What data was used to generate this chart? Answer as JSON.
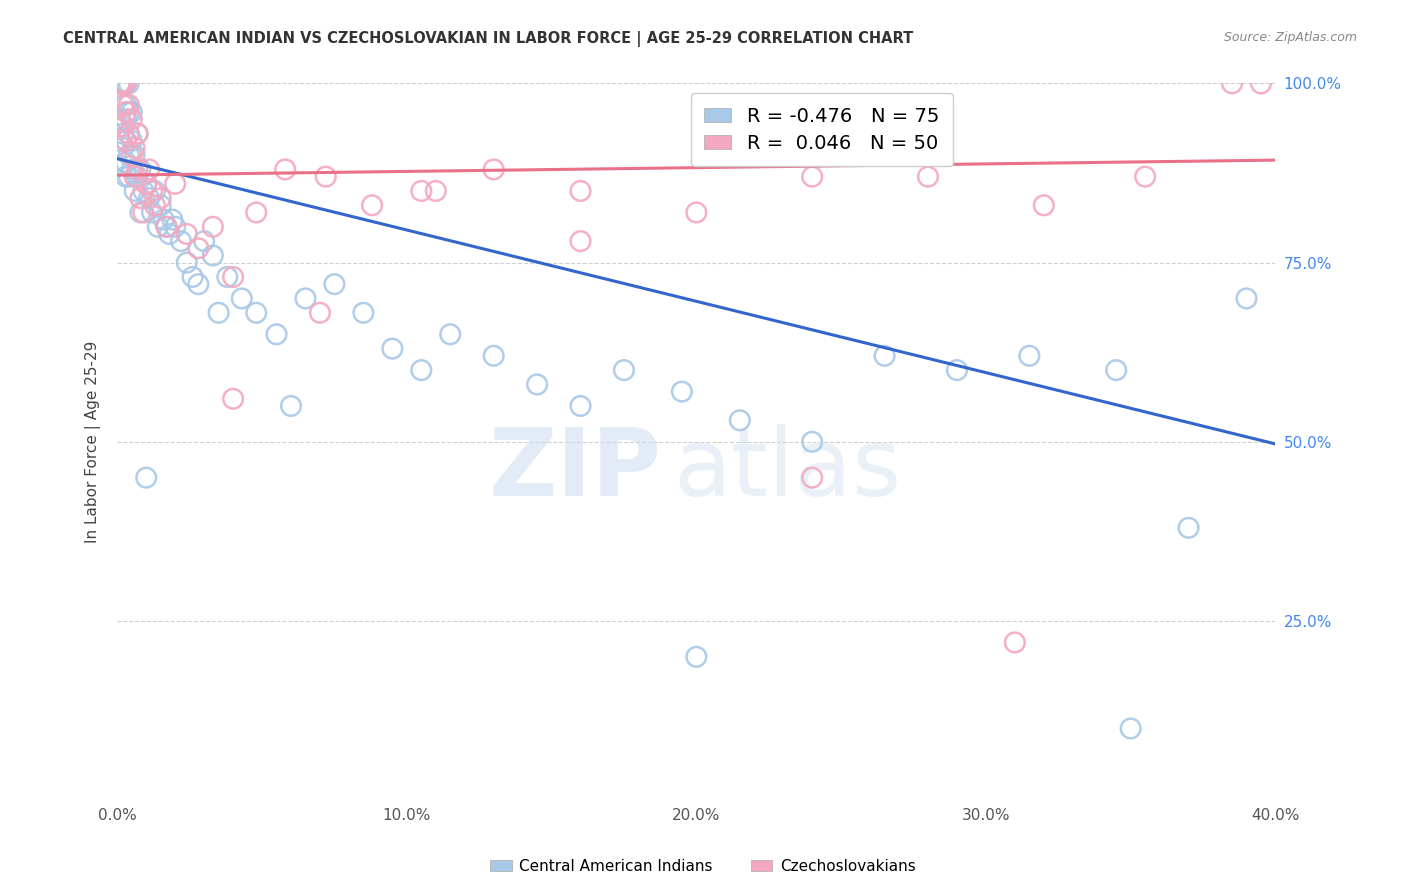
{
  "title": "CENTRAL AMERICAN INDIAN VS CZECHOSLOVAKIAN IN LABOR FORCE | AGE 25-29 CORRELATION CHART",
  "source": "Source: ZipAtlas.com",
  "ylabel": "In Labor Force | Age 25-29",
  "xlim": [
    0.0,
    0.4
  ],
  "ylim": [
    0.0,
    1.0
  ],
  "xtick_labels": [
    "0.0%",
    "10.0%",
    "20.0%",
    "30.0%",
    "40.0%"
  ],
  "xtick_vals": [
    0.0,
    0.1,
    0.2,
    0.3,
    0.4
  ],
  "ytick_labels": [
    "25.0%",
    "50.0%",
    "75.0%",
    "100.0%"
  ],
  "ytick_vals": [
    0.25,
    0.5,
    0.75,
    1.0
  ],
  "blue_R": -0.476,
  "blue_N": 75,
  "pink_R": 0.046,
  "pink_N": 50,
  "blue_color": "#a8c8e8",
  "pink_color": "#f4a8c0",
  "blue_line_color": "#3366cc",
  "pink_line_color": "#e87088",
  "blue_line_x0": 0.0,
  "blue_line_y0": 0.895,
  "blue_line_x1": 0.4,
  "blue_line_y1": 0.497,
  "pink_line_x0": 0.0,
  "pink_line_y0": 0.872,
  "pink_line_x1": 0.4,
  "pink_line_y1": 0.893,
  "blue_x": [
    0.001,
    0.001,
    0.001,
    0.001,
    0.001,
    0.002,
    0.002,
    0.002,
    0.002,
    0.003,
    0.003,
    0.003,
    0.003,
    0.003,
    0.003,
    0.004,
    0.004,
    0.004,
    0.004,
    0.004,
    0.005,
    0.005,
    0.005,
    0.006,
    0.006,
    0.007,
    0.007,
    0.008,
    0.008,
    0.009,
    0.01,
    0.011,
    0.012,
    0.013,
    0.014,
    0.015,
    0.016,
    0.017,
    0.018,
    0.019,
    0.02,
    0.022,
    0.024,
    0.026,
    0.028,
    0.03,
    0.033,
    0.038,
    0.043,
    0.048,
    0.055,
    0.065,
    0.075,
    0.085,
    0.095,
    0.105,
    0.115,
    0.13,
    0.145,
    0.16,
    0.175,
    0.195,
    0.215,
    0.24,
    0.265,
    0.29,
    0.315,
    0.345,
    0.37,
    0.39,
    0.01,
    0.035,
    0.06,
    0.2,
    0.35
  ],
  "blue_y": [
    1.0,
    1.0,
    1.0,
    0.95,
    0.92,
    1.0,
    1.0,
    0.93,
    0.91,
    1.0,
    0.97,
    0.95,
    0.92,
    0.89,
    0.87,
    1.0,
    0.96,
    0.93,
    0.9,
    0.87,
    0.96,
    0.92,
    0.88,
    0.9,
    0.85,
    0.93,
    0.87,
    0.88,
    0.82,
    0.85,
    0.86,
    0.84,
    0.82,
    0.85,
    0.8,
    0.83,
    0.81,
    0.8,
    0.79,
    0.81,
    0.8,
    0.78,
    0.75,
    0.73,
    0.72,
    0.78,
    0.76,
    0.73,
    0.7,
    0.68,
    0.65,
    0.7,
    0.72,
    0.68,
    0.63,
    0.6,
    0.65,
    0.62,
    0.58,
    0.55,
    0.6,
    0.57,
    0.53,
    0.5,
    0.62,
    0.6,
    0.62,
    0.6,
    0.38,
    0.7,
    0.45,
    0.68,
    0.55,
    0.2,
    0.1
  ],
  "pink_x": [
    0.001,
    0.001,
    0.001,
    0.002,
    0.002,
    0.002,
    0.003,
    0.003,
    0.003,
    0.004,
    0.004,
    0.005,
    0.005,
    0.006,
    0.006,
    0.007,
    0.007,
    0.008,
    0.009,
    0.01,
    0.011,
    0.012,
    0.013,
    0.015,
    0.017,
    0.02,
    0.024,
    0.028,
    0.033,
    0.04,
    0.048,
    0.058,
    0.072,
    0.088,
    0.105,
    0.13,
    0.16,
    0.2,
    0.24,
    0.28,
    0.32,
    0.355,
    0.385,
    0.395,
    0.04,
    0.07,
    0.11,
    0.16,
    0.24,
    0.31
  ],
  "pink_y": [
    1.0,
    1.0,
    1.0,
    1.0,
    0.97,
    0.94,
    1.0,
    0.96,
    0.92,
    0.97,
    0.93,
    0.95,
    0.9,
    0.91,
    0.87,
    0.93,
    0.88,
    0.84,
    0.82,
    0.86,
    0.88,
    0.85,
    0.83,
    0.84,
    0.8,
    0.86,
    0.79,
    0.77,
    0.8,
    0.73,
    0.82,
    0.88,
    0.87,
    0.83,
    0.85,
    0.88,
    0.85,
    0.82,
    0.87,
    0.87,
    0.83,
    0.87,
    1.0,
    1.0,
    0.56,
    0.68,
    0.85,
    0.78,
    0.45,
    0.22
  ],
  "legend_blue_label": "Central American Indians",
  "legend_pink_label": "Czechoslovakians",
  "watermark_left": "ZIP",
  "watermark_right": "atlas",
  "background_color": "#ffffff",
  "grid_color": "#d0d0d0"
}
